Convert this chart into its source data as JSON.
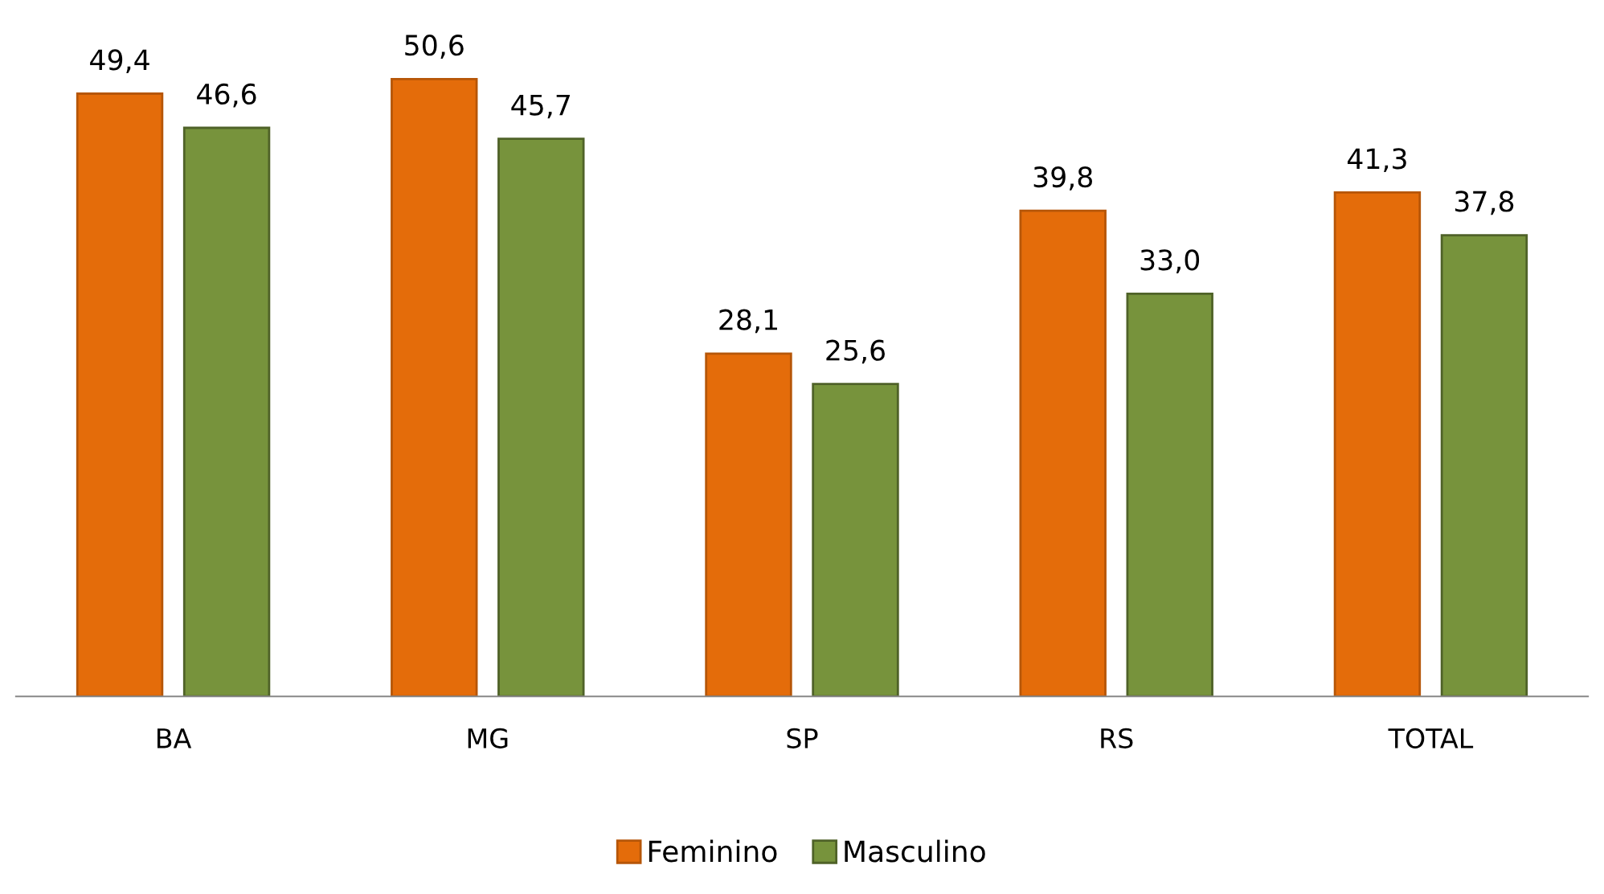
{
  "chart_data": {
    "type": "bar",
    "categories": [
      "BA",
      "MG",
      "SP",
      "RS",
      "TOTAL"
    ],
    "series": [
      {
        "name": "Feminino",
        "color": "#e46c0a",
        "values": [
          49.4,
          50.6,
          28.1,
          39.8,
          41.3
        ],
        "value_labels": [
          "49,4",
          "50,6",
          "28,1",
          "39,8",
          "41,3"
        ]
      },
      {
        "name": "Masculino",
        "color": "#77933c",
        "values": [
          46.6,
          45.7,
          25.6,
          33.0,
          37.8
        ],
        "value_labels": [
          "46,6",
          "45,7",
          "25,6",
          "33,0",
          "37,8"
        ]
      }
    ],
    "legend": "bottom"
  }
}
